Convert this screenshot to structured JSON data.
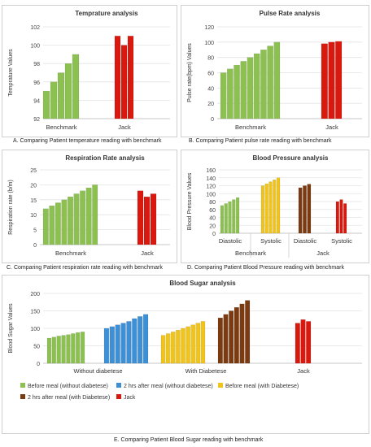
{
  "captions": {
    "a": "A.     Comparing Patient temperature reading  with benchmark",
    "b": "B.     Comparing Patient pulse rate reading  with benchmark",
    "c": "C.     Comparing Patient respiration rate reading  with benchmark",
    "d": "D.     Comparing Patient Blood Pressure reading  with benchmark",
    "e": "E.     Comparing Patient Blood Sugar reading  with benchmark"
  },
  "chart_data": [
    {
      "id": "temp",
      "type": "bar",
      "title": "Temprature analysis",
      "ylabel": "Temprature Values",
      "xlabel": "",
      "ylim": [
        92,
        102
      ],
      "yticks": [
        92,
        94,
        96,
        98,
        100,
        102
      ],
      "grid": true,
      "groups": [
        {
          "label": "Benchmark",
          "color": "#8cc152",
          "values": [
            95,
            96,
            97,
            98,
            99
          ]
        },
        {
          "label": "Jack",
          "color": "#d9180e",
          "values": [
            101,
            100,
            101
          ]
        }
      ]
    },
    {
      "id": "pulse",
      "type": "bar",
      "title": "Pulse Rate analysis",
      "ylabel": "Pulse rate(bpm) Values",
      "xlabel": "",
      "ylim": [
        0,
        120
      ],
      "yticks": [
        0,
        20,
        40,
        60,
        80,
        100,
        120
      ],
      "grid": true,
      "groups": [
        {
          "label": "Benchmark",
          "color": "#8cc152",
          "values": [
            60,
            65,
            70,
            75,
            80,
            85,
            90,
            95,
            100
          ]
        },
        {
          "label": "Jack",
          "color": "#d9180e",
          "values": [
            98,
            100,
            101
          ]
        }
      ]
    },
    {
      "id": "resp",
      "type": "bar",
      "title": "Respiration Rate analysis",
      "ylabel": "Respiration rate (b/m)",
      "xlabel": "",
      "ylim": [
        0,
        25
      ],
      "yticks": [
        0,
        5,
        10,
        15,
        20,
        25
      ],
      "grid": true,
      "groups": [
        {
          "label": "Benchmark",
          "color": "#8cc152",
          "values": [
            12,
            13,
            14,
            15,
            16,
            17,
            18,
            19,
            20
          ]
        },
        {
          "label": "Jack",
          "color": "#d9180e",
          "values": [
            18,
            16,
            17
          ]
        }
      ]
    },
    {
      "id": "bp",
      "type": "bar",
      "title": "Blood Pressure analysis",
      "ylabel": "Blood Pressure Values",
      "xlabel": "",
      "ylim": [
        0,
        160
      ],
      "yticks": [
        0,
        20,
        40,
        60,
        80,
        100,
        120,
        140,
        160
      ],
      "grid": true,
      "groups": [
        {
          "label": "Diastolic",
          "color": "#8cc152",
          "values": [
            70,
            75,
            80,
            85,
            90
          ]
        },
        {
          "label": "Systolic",
          "color": "#f0c419",
          "values": [
            120,
            125,
            130,
            135,
            140
          ]
        },
        {
          "label": "Diastolic",
          "color": "#7b3a10",
          "values": [
            115,
            120,
            124
          ]
        },
        {
          "label": "Systolic",
          "color": "#d9180e",
          "values": [
            80,
            85,
            75
          ]
        }
      ],
      "categories2": [
        {
          "label": "Benchmark",
          "groups": [
            0,
            1
          ]
        },
        {
          "label": "Jack",
          "groups": [
            2,
            3
          ]
        }
      ]
    },
    {
      "id": "sugar",
      "type": "bar",
      "title": "Blood Sugar analysis",
      "ylabel": "Blood Sugar Values",
      "xlabel": "",
      "ylim": [
        0,
        200
      ],
      "yticks": [
        0,
        50,
        100,
        150,
        200
      ],
      "grid": true,
      "groups": [
        {
          "label": "Before meal (without diabetese)",
          "color": "#8cc152",
          "values": [
            72,
            75,
            78,
            80,
            82,
            85,
            88,
            90
          ]
        },
        {
          "label": "2 hrs after meal (without diabetese)",
          "color": "#3d8fd6",
          "values": [
            100,
            105,
            110,
            115,
            120,
            128,
            134,
            140
          ]
        },
        {
          "label": "Before meal (with Diabetese)",
          "color": "#f0c419",
          "values": [
            80,
            85,
            90,
            95,
            100,
            105,
            110,
            115,
            120
          ]
        },
        {
          "label": "2 hrs after meal (with Diabetese)",
          "color": "#7b3a10",
          "values": [
            130,
            140,
            150,
            160,
            170,
            180
          ]
        },
        {
          "label": "Jack",
          "color": "#d9180e",
          "values": [
            115,
            125,
            120
          ]
        }
      ],
      "categories": [
        {
          "label": "Without diabetese",
          "groups": [
            0,
            1
          ]
        },
        {
          "label": "With Diabetese",
          "groups": [
            2,
            3
          ]
        },
        {
          "label": "Jack",
          "groups": [
            4
          ]
        }
      ],
      "legend": "bottom"
    }
  ]
}
